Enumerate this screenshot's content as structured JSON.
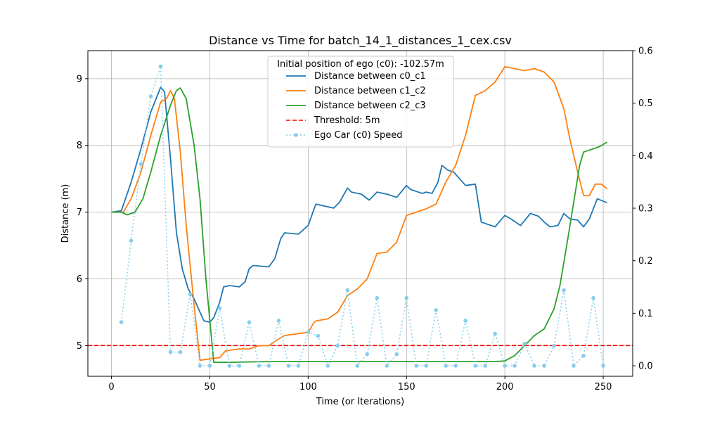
{
  "chart_data": {
    "type": "line",
    "title": "Distance vs Time for batch_14_1_distances_1_cex.csv",
    "xlabel": "Time (or Iterations)",
    "ylabel": "Distance (m)",
    "xlim": [
      -12,
      265
    ],
    "ylim": [
      4.54,
      9.42
    ],
    "y2lim": [
      -0.02,
      0.6
    ],
    "xticks": [
      "0",
      "50",
      "100",
      "150",
      "200",
      "250"
    ],
    "yticks": [
      "5",
      "6",
      "7",
      "8",
      "9"
    ],
    "y2ticks": [
      "0.0",
      "0.1",
      "0.2",
      "0.3",
      "0.4",
      "0.5",
      "0.6"
    ],
    "grid": true,
    "legend_title": "Initial position of ego (c0): -102.57m",
    "legend_position": "top-center",
    "threshold": {
      "name": "Threshold: 5m",
      "value": 5,
      "color": "#ff0000"
    },
    "series": [
      {
        "name": "Distance between c0_c1",
        "color": "#1f77b4",
        "axis": "left",
        "points": [
          [
            0,
            7.0
          ],
          [
            5,
            7.02
          ],
          [
            10,
            7.45
          ],
          [
            15,
            7.95
          ],
          [
            20,
            8.5
          ],
          [
            25,
            8.87
          ],
          [
            27,
            8.8
          ],
          [
            30,
            7.8
          ],
          [
            33,
            6.7
          ],
          [
            36,
            6.15
          ],
          [
            39,
            5.85
          ],
          [
            42,
            5.7
          ],
          [
            45,
            5.5
          ],
          [
            47,
            5.37
          ],
          [
            50,
            5.35
          ],
          [
            52,
            5.42
          ],
          [
            55,
            5.65
          ],
          [
            57,
            5.88
          ],
          [
            60,
            5.9
          ],
          [
            65,
            5.88
          ],
          [
            68,
            5.96
          ],
          [
            70,
            6.15
          ],
          [
            72,
            6.2
          ],
          [
            80,
            6.18
          ],
          [
            83,
            6.3
          ],
          [
            86,
            6.6
          ],
          [
            88,
            6.69
          ],
          [
            95,
            6.67
          ],
          [
            100,
            6.8
          ],
          [
            103,
            7.05
          ],
          [
            104,
            7.12
          ],
          [
            110,
            7.08
          ],
          [
            113,
            7.06
          ],
          [
            116,
            7.15
          ],
          [
            120,
            7.36
          ],
          [
            122,
            7.3
          ],
          [
            127,
            7.27
          ],
          [
            131,
            7.18
          ],
          [
            135,
            7.3
          ],
          [
            140,
            7.27
          ],
          [
            145,
            7.22
          ],
          [
            150,
            7.4
          ],
          [
            152,
            7.34
          ],
          [
            158,
            7.28
          ],
          [
            160,
            7.3
          ],
          [
            163,
            7.28
          ],
          [
            166,
            7.45
          ],
          [
            168,
            7.7
          ],
          [
            171,
            7.63
          ],
          [
            174,
            7.6
          ],
          [
            177,
            7.5
          ],
          [
            180,
            7.4
          ],
          [
            185,
            7.42
          ],
          [
            188,
            6.85
          ],
          [
            195,
            6.78
          ],
          [
            200,
            6.95
          ],
          [
            203,
            6.9
          ],
          [
            208,
            6.8
          ],
          [
            213,
            6.98
          ],
          [
            217,
            6.94
          ],
          [
            220,
            6.85
          ],
          [
            223,
            6.78
          ],
          [
            227,
            6.8
          ],
          [
            230,
            6.98
          ],
          [
            233,
            6.9
          ],
          [
            237,
            6.88
          ],
          [
            240,
            6.78
          ],
          [
            243,
            6.9
          ],
          [
            247,
            7.2
          ],
          [
            252,
            7.14
          ]
        ]
      },
      {
        "name": "Distance between c1_c2",
        "color": "#ff7f0e",
        "axis": "left",
        "points": [
          [
            0,
            7.0
          ],
          [
            6,
            7.0
          ],
          [
            10,
            7.2
          ],
          [
            15,
            7.6
          ],
          [
            20,
            8.15
          ],
          [
            25,
            8.65
          ],
          [
            28,
            8.7
          ],
          [
            30,
            8.82
          ],
          [
            32,
            8.7
          ],
          [
            35,
            7.9
          ],
          [
            38,
            6.8
          ],
          [
            42,
            5.6
          ],
          [
            45,
            4.78
          ],
          [
            50,
            4.8
          ],
          [
            55,
            4.82
          ],
          [
            58,
            4.92
          ],
          [
            65,
            4.95
          ],
          [
            70,
            4.95
          ],
          [
            75,
            5.0
          ],
          [
            80,
            5.0
          ],
          [
            85,
            5.1
          ],
          [
            88,
            5.15
          ],
          [
            95,
            5.18
          ],
          [
            100,
            5.2
          ],
          [
            103,
            5.35
          ],
          [
            104,
            5.37
          ],
          [
            110,
            5.4
          ],
          [
            115,
            5.5
          ],
          [
            120,
            5.75
          ],
          [
            125,
            5.85
          ],
          [
            130,
            6.0
          ],
          [
            135,
            6.38
          ],
          [
            140,
            6.4
          ],
          [
            145,
            6.55
          ],
          [
            150,
            6.95
          ],
          [
            153,
            6.98
          ],
          [
            160,
            7.05
          ],
          [
            165,
            7.12
          ],
          [
            170,
            7.45
          ],
          [
            175,
            7.7
          ],
          [
            180,
            8.15
          ],
          [
            185,
            8.75
          ],
          [
            190,
            8.82
          ],
          [
            195,
            8.95
          ],
          [
            200,
            9.18
          ],
          [
            205,
            9.15
          ],
          [
            210,
            9.12
          ],
          [
            215,
            9.15
          ],
          [
            220,
            9.1
          ],
          [
            225,
            8.95
          ],
          [
            230,
            8.55
          ],
          [
            233,
            8.1
          ],
          [
            237,
            7.6
          ],
          [
            240,
            7.25
          ],
          [
            243,
            7.25
          ],
          [
            246,
            7.42
          ],
          [
            249,
            7.42
          ],
          [
            252,
            7.35
          ]
        ]
      },
      {
        "name": "Distance between c2_c3",
        "color": "#2ca02c",
        "axis": "left",
        "points": [
          [
            0,
            7.0
          ],
          [
            5,
            7.0
          ],
          [
            8,
            6.96
          ],
          [
            12,
            7.0
          ],
          [
            16,
            7.2
          ],
          [
            20,
            7.6
          ],
          [
            25,
            8.15
          ],
          [
            30,
            8.6
          ],
          [
            33,
            8.82
          ],
          [
            35,
            8.86
          ],
          [
            38,
            8.7
          ],
          [
            42,
            8.0
          ],
          [
            45,
            7.2
          ],
          [
            48,
            6.0
          ],
          [
            52,
            4.75
          ],
          [
            60,
            4.75
          ],
          [
            80,
            4.76
          ],
          [
            120,
            4.76
          ],
          [
            160,
            4.76
          ],
          [
            195,
            4.76
          ],
          [
            200,
            4.77
          ],
          [
            205,
            4.85
          ],
          [
            210,
            5.0
          ],
          [
            215,
            5.15
          ],
          [
            220,
            5.25
          ],
          [
            225,
            5.55
          ],
          [
            228,
            5.9
          ],
          [
            232,
            6.6
          ],
          [
            235,
            7.15
          ],
          [
            238,
            7.7
          ],
          [
            240,
            7.9
          ],
          [
            245,
            7.95
          ],
          [
            248,
            7.98
          ],
          [
            252,
            8.05
          ]
        ]
      },
      {
        "name": "Ego Car (c0) Speed",
        "color": "#87ceeb",
        "axis": "right",
        "style": "dotted",
        "points": [
          [
            5,
            0.083
          ],
          [
            10,
            0.238
          ],
          [
            15,
            0.384
          ],
          [
            20,
            0.513
          ],
          [
            25,
            0.57
          ],
          [
            30,
            0.026
          ],
          [
            35,
            0.026
          ],
          [
            40,
            0.136
          ],
          [
            45,
            0.0
          ],
          [
            50,
            0.0
          ],
          [
            55,
            0.11
          ],
          [
            60,
            0.0
          ],
          [
            65,
            0.0
          ],
          [
            70,
            0.083
          ],
          [
            75,
            0.0
          ],
          [
            80,
            0.0
          ],
          [
            85,
            0.086
          ],
          [
            90,
            0.0
          ],
          [
            95,
            0.0
          ],
          [
            100,
            0.064
          ],
          [
            105,
            0.057
          ],
          [
            110,
            0.0
          ],
          [
            115,
            0.038
          ],
          [
            120,
            0.144
          ],
          [
            125,
            0.0
          ],
          [
            130,
            0.022
          ],
          [
            135,
            0.129
          ],
          [
            140,
            0.0
          ],
          [
            145,
            0.022
          ],
          [
            150,
            0.129
          ],
          [
            155,
            0.0
          ],
          [
            160,
            0.0
          ],
          [
            165,
            0.106
          ],
          [
            170,
            0.0
          ],
          [
            175,
            0.0
          ],
          [
            180,
            0.086
          ],
          [
            185,
            0.0
          ],
          [
            190,
            0.0
          ],
          [
            195,
            0.061
          ],
          [
            200,
            0.0
          ],
          [
            205,
            0.0
          ],
          [
            210,
            0.042
          ],
          [
            215,
            0.0
          ],
          [
            220,
            0.0
          ],
          [
            225,
            0.038
          ],
          [
            230,
            0.144
          ],
          [
            235,
            0.0
          ],
          [
            240,
            0.019
          ],
          [
            245,
            0.129
          ],
          [
            250,
            0.0
          ]
        ]
      }
    ]
  }
}
